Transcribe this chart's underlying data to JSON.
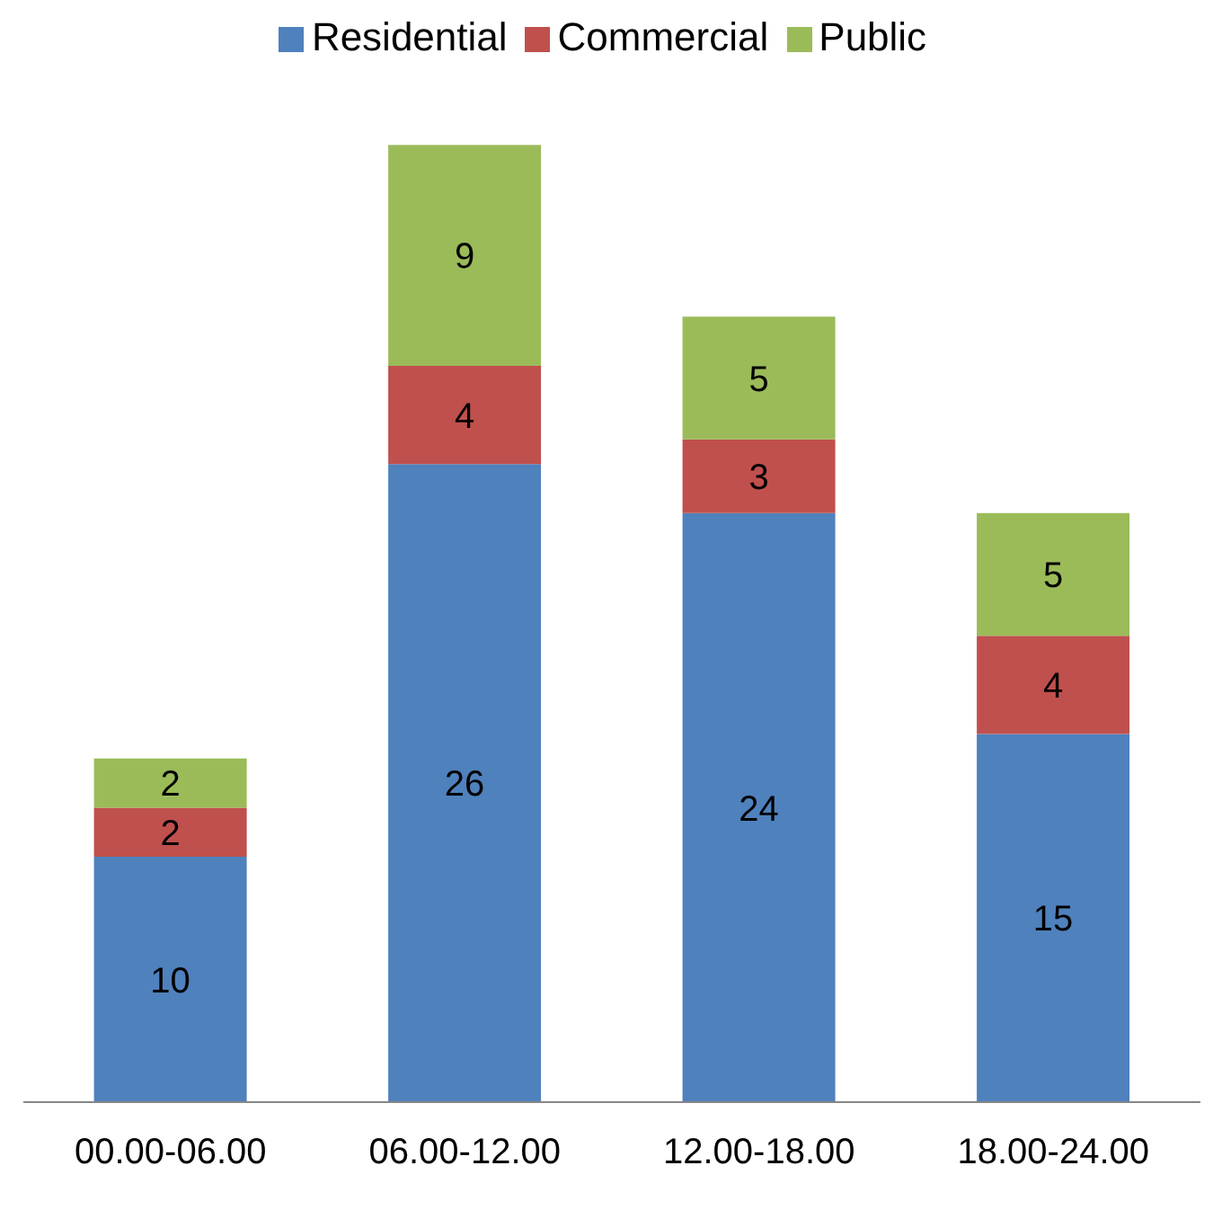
{
  "chart_data": {
    "type": "bar",
    "stacked": true,
    "categories": [
      "00.00-06.00",
      "06.00-12.00",
      "12.00-18.00",
      "18.00-24.00"
    ],
    "series": [
      {
        "name": "Residential",
        "color": "#4f81bd",
        "values": [
          10,
          26,
          24,
          15
        ]
      },
      {
        "name": "Commercial",
        "color": "#c0504d",
        "values": [
          2,
          4,
          3,
          4
        ]
      },
      {
        "name": "Public",
        "color": "#9bbb59",
        "values": [
          2,
          9,
          5,
          5
        ]
      }
    ],
    "data_labels": true,
    "legend": "top",
    "grid": false
  }
}
